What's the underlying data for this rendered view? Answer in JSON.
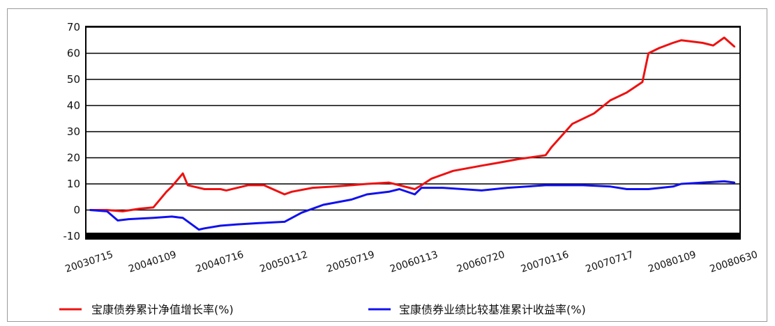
{
  "chart_data": {
    "type": "line",
    "title": "",
    "xlabel": "",
    "ylabel": "",
    "ylim": [
      -10,
      70
    ],
    "yticks": [
      70,
      60,
      50,
      40,
      30,
      20,
      10,
      0,
      -10
    ],
    "grid": true,
    "legend_position": "bottom",
    "x_tick_labels": [
      "20030715",
      "20040109",
      "20040716",
      "20050112",
      "20050719",
      "20060113",
      "20060720",
      "20070116",
      "20070717",
      "20080109",
      "20080630"
    ],
    "series": [
      {
        "name": "宝康债券累计净值增长率(%)",
        "color": "#ee1111",
        "x": [
          "20030715",
          "20030901",
          "20031015",
          "20031201",
          "20040109",
          "20040215",
          "20040301",
          "20040401",
          "20040415",
          "20040501",
          "20040601",
          "20040716",
          "20040801",
          "20041001",
          "20041115",
          "20050112",
          "20050201",
          "20050401",
          "20050601",
          "20050719",
          "20050901",
          "20051101",
          "20060113",
          "20060201",
          "20060301",
          "20060501",
          "20060720",
          "20060901",
          "20061101",
          "20070116",
          "20070201",
          "20070401",
          "20070601",
          "20070717",
          "20070901",
          "20071015",
          "20071101",
          "20071201",
          "20080109",
          "20080201",
          "20080401",
          "20080501",
          "20080601",
          "20080630"
        ],
        "y": [
          0,
          0,
          -0.5,
          0.5,
          1,
          7,
          9,
          14,
          9.5,
          9,
          8,
          8,
          7.5,
          9.5,
          9.5,
          6,
          7,
          8.5,
          9,
          9.5,
          10,
          10.5,
          8,
          9.5,
          12,
          15,
          17,
          18,
          19.5,
          21,
          24,
          33,
          37,
          42,
          45,
          49,
          60,
          62,
          64,
          65,
          64,
          63,
          66,
          62.5
        ]
      },
      {
        "name": "宝康债券业绩比较基准累计收益率(%)",
        "color": "#1111ee",
        "x": [
          "20030715",
          "20030901",
          "20031001",
          "20031101",
          "20040109",
          "20040301",
          "20040401",
          "20040516",
          "20040601",
          "20040716",
          "20040901",
          "20041101",
          "20050112",
          "20050301",
          "20050501",
          "20050719",
          "20050901",
          "20051101",
          "20051201",
          "20060113",
          "20060201",
          "20060401",
          "20060720",
          "20061001",
          "20070116",
          "20070501",
          "20070717",
          "20070901",
          "20071101",
          "20080109",
          "20080201",
          "20080401",
          "20080601",
          "20080630"
        ],
        "y": [
          0,
          -0.5,
          -4,
          -3.5,
          -3,
          -2.5,
          -3,
          -7.5,
          -7,
          -6,
          -5.5,
          -5,
          -4.5,
          -1,
          2,
          4,
          6,
          7,
          8,
          6,
          8.5,
          8.5,
          7.5,
          8.5,
          9.5,
          9.5,
          9,
          8,
          8,
          9,
          10,
          10.5,
          11,
          10.5
        ]
      }
    ]
  }
}
